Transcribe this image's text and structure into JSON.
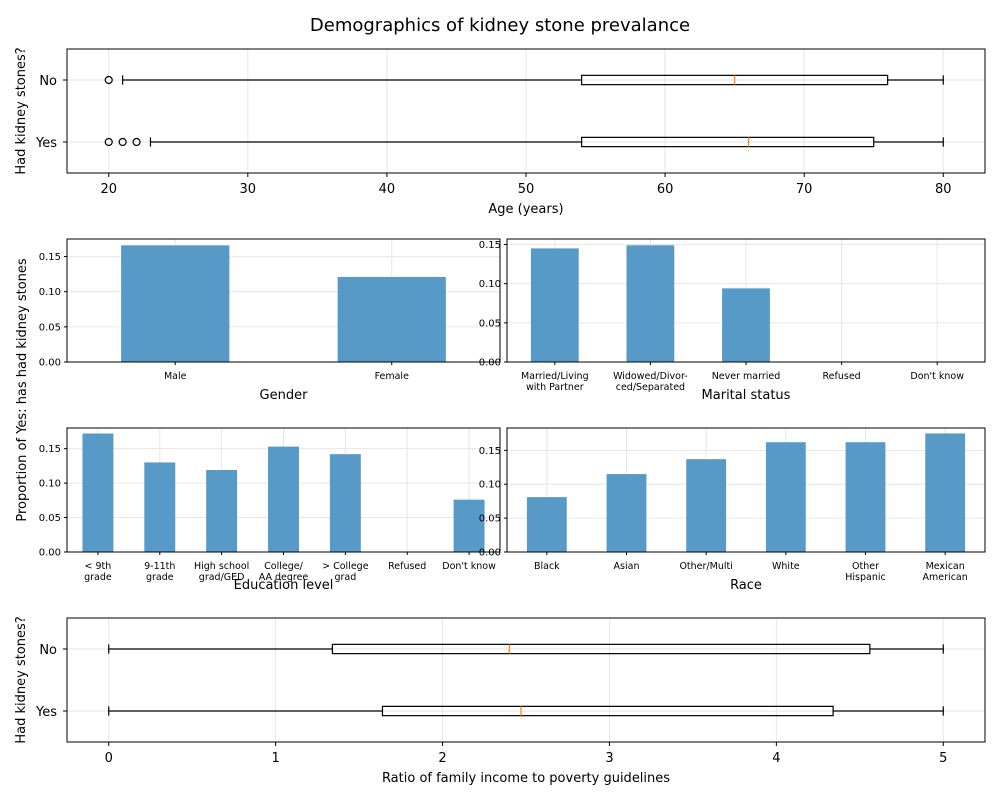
{
  "suptitle": "Demographics of kidney stone prevalance",
  "shared_ylabel": "Proportion of Yes: has had kidney stones",
  "chart_data": [
    {
      "id": "age",
      "type": "boxplot",
      "xlabel": "Age (years)",
      "ylabel": "Had kidney stones?",
      "xlim": [
        17,
        83
      ],
      "xticks": [
        20,
        30,
        40,
        50,
        60,
        70,
        80
      ],
      "groups": [
        {
          "label": "No",
          "whislo": 21,
          "q1": 54,
          "med": 65,
          "q3": 76,
          "whishi": 80,
          "fliers": [
            20
          ]
        },
        {
          "label": "Yes",
          "whislo": 23,
          "q1": 54,
          "med": 66,
          "q3": 75,
          "whishi": 80,
          "fliers": [
            20,
            21,
            22
          ]
        }
      ],
      "grid": true
    },
    {
      "id": "gender",
      "type": "bar",
      "xlabel": "Gender",
      "categories": [
        "Male",
        "Female"
      ],
      "values": [
        0.166,
        0.121
      ],
      "ylim": [
        0,
        0.175
      ],
      "yticks": [
        "0.00",
        "0.05",
        "0.10",
        "0.15"
      ],
      "grid": true
    },
    {
      "id": "marital",
      "type": "bar",
      "xlabel": "Marital status",
      "categories": [
        [
          "Married/Living",
          "with Partner"
        ],
        [
          "Widowed/Divor-",
          "ced/Separated"
        ],
        [
          "Never married"
        ],
        [
          "Refused"
        ],
        [
          "Don't know"
        ]
      ],
      "values": [
        0.145,
        0.149,
        0.094,
        0,
        0
      ],
      "ylim": [
        0,
        0.157
      ],
      "yticks": [
        "0.00",
        "0.05",
        "0.10",
        "0.15"
      ],
      "grid": true
    },
    {
      "id": "education",
      "type": "bar",
      "xlabel": "Education level",
      "categories": [
        [
          "< 9th",
          "grade"
        ],
        [
          "9-11th",
          "grade"
        ],
        [
          "High school",
          "grad/GED"
        ],
        [
          "College/",
          "AA degree"
        ],
        [
          "> College",
          "grad"
        ],
        [
          "Refused"
        ],
        [
          "Don't know"
        ]
      ],
      "values": [
        0.172,
        0.13,
        0.119,
        0.153,
        0.142,
        0,
        0.076
      ],
      "ylim": [
        0,
        0.18
      ],
      "yticks": [
        "0.00",
        "0.05",
        "0.10",
        "0.15"
      ],
      "grid": true
    },
    {
      "id": "race",
      "type": "bar",
      "xlabel": "Race",
      "categories": [
        [
          "Black"
        ],
        [
          "Asian"
        ],
        [
          "Other/Multi"
        ],
        [
          "White"
        ],
        [
          "Other",
          "Hispanic"
        ],
        [
          "Mexican",
          "American"
        ]
      ],
      "values": [
        0.081,
        0.115,
        0.137,
        0.162,
        0.162,
        0.175
      ],
      "ylim": [
        0,
        0.183
      ],
      "yticks": [
        "0.00",
        "0.05",
        "0.10",
        "0.15"
      ],
      "grid": true
    },
    {
      "id": "income",
      "type": "boxplot",
      "xlabel": "Ratio of family income to poverty guidelines",
      "ylabel": "Had kidney stones?",
      "xlim": [
        -0.25,
        5.25
      ],
      "xticks": [
        0,
        1,
        2,
        3,
        4,
        5
      ],
      "groups": [
        {
          "label": "No",
          "whislo": 0,
          "q1": 1.34,
          "med": 2.4,
          "q3": 4.56,
          "whishi": 5,
          "fliers": []
        },
        {
          "label": "Yes",
          "whislo": 0,
          "q1": 1.64,
          "med": 2.47,
          "q3": 4.34,
          "whishi": 5,
          "fliers": []
        }
      ],
      "grid": true
    }
  ]
}
